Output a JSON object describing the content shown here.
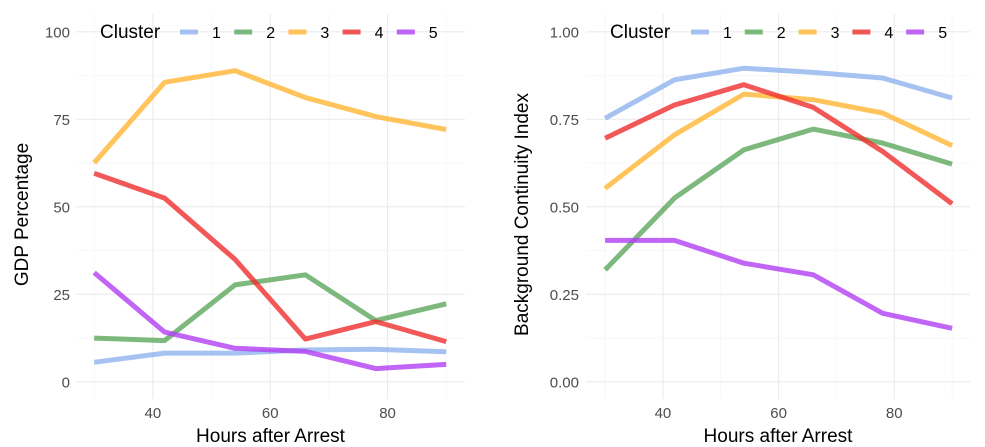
{
  "chart_data": [
    {
      "type": "line",
      "title": "",
      "xlabel": "Hours after Arrest",
      "ylabel": "GDP Percentage",
      "xlim": [
        26.9,
        93.2
      ],
      "ylim": [
        -4.9,
        105.1
      ],
      "x_ticks": [
        40,
        60,
        80
      ],
      "x_tick_labels": [
        "40",
        "60",
        "80"
      ],
      "x_minor_ticks": [
        30,
        50,
        70,
        90
      ],
      "y_ticks": [
        0,
        25,
        50,
        75,
        100
      ],
      "y_tick_labels": [
        "0",
        "25",
        "50",
        "75",
        "100"
      ],
      "y_minor_ticks": [
        12.5,
        37.5,
        62.5,
        87.5
      ],
      "grid": true,
      "legend": {
        "title": "Cluster",
        "position": "top-inside",
        "direction": "horizontal"
      },
      "x": [
        30,
        42,
        54,
        66,
        78,
        90
      ],
      "series": [
        {
          "name": "1",
          "color": "#8fb3ee",
          "values": [
            5.6,
            8.2,
            8.2,
            9.1,
            9.3,
            8.6
          ]
        },
        {
          "name": "2",
          "color": "#5ca65c",
          "values": [
            12.5,
            11.8,
            27.7,
            30.6,
            17.5,
            22.3
          ]
        },
        {
          "name": "3",
          "color": "#ffb733",
          "values": [
            62.6,
            85.6,
            88.9,
            81.2,
            75.8,
            72.1
          ]
        },
        {
          "name": "4",
          "color": "#ef2e2e",
          "values": [
            59.6,
            52.5,
            35.0,
            12.2,
            17.2,
            11.5
          ]
        },
        {
          "name": "5",
          "color": "#b03ff2",
          "values": [
            31.2,
            14.2,
            9.6,
            8.7,
            3.8,
            5.0
          ]
        }
      ]
    },
    {
      "type": "line",
      "title": "",
      "xlabel": "Hours after Arrest",
      "ylabel": "Background Continuity Index",
      "xlim": [
        26.7,
        93.1
      ],
      "ylim": [
        -0.049,
        1.051
      ],
      "x_ticks": [
        40,
        60,
        80
      ],
      "x_tick_labels": [
        "40",
        "60",
        "80"
      ],
      "x_minor_ticks": [
        30,
        50,
        70,
        90
      ],
      "y_ticks": [
        0,
        0.25,
        0.5,
        0.75,
        1.0
      ],
      "y_tick_labels": [
        "0.00",
        "0.25",
        "0.50",
        "0.75",
        "1.00"
      ],
      "y_minor_ticks": [
        0.125,
        0.375,
        0.625,
        0.875
      ],
      "grid": true,
      "legend": {
        "title": "Cluster",
        "position": "top-inside",
        "direction": "horizontal"
      },
      "x": [
        30,
        42,
        54,
        66,
        78,
        90
      ],
      "series": [
        {
          "name": "1",
          "color": "#8fb3ee",
          "values": [
            0.753,
            0.863,
            0.896,
            0.884,
            0.868,
            0.811
          ]
        },
        {
          "name": "2",
          "color": "#5ca65c",
          "values": [
            0.32,
            0.525,
            0.663,
            0.722,
            0.682,
            0.622
          ]
        },
        {
          "name": "3",
          "color": "#ffb733",
          "values": [
            0.553,
            0.706,
            0.822,
            0.806,
            0.768,
            0.675
          ]
        },
        {
          "name": "4",
          "color": "#ef2e2e",
          "values": [
            0.696,
            0.791,
            0.849,
            0.784,
            0.658,
            0.509
          ]
        },
        {
          "name": "5",
          "color": "#b03ff2",
          "values": [
            0.404,
            0.404,
            0.339,
            0.306,
            0.196,
            0.153
          ]
        }
      ]
    }
  ]
}
